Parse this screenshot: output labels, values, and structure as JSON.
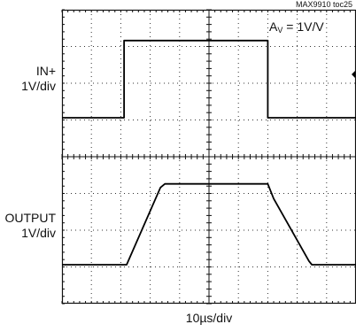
{
  "figure_id": "MAX9910 toc25",
  "gain": {
    "symbol": "A",
    "subscript": "V",
    "text": " = 1V/V"
  },
  "timebase": "10µs/div",
  "channels": [
    {
      "name_line1": "IN+",
      "name_line2": "1V/div"
    },
    {
      "name_line1": "OUTPUT",
      "name_line2": "1V/div"
    }
  ],
  "chart_data": {
    "type": "line",
    "title": "",
    "xlabel": "10µs/div",
    "x_unit": "µs",
    "xlim": [
      0,
      100
    ],
    "x_divisions": 10,
    "grid": true,
    "series": [
      {
        "name": "IN+",
        "scale": "1V/div",
        "y_divisions": 4,
        "baseline_div": 0,
        "points": [
          [
            0,
            0
          ],
          [
            21.1,
            0
          ],
          [
            21.1,
            2.1
          ],
          [
            70.0,
            2.1
          ],
          [
            70.0,
            0
          ],
          [
            100,
            0
          ]
        ]
      },
      {
        "name": "OUTPUT",
        "scale": "1V/div",
        "y_divisions": 4,
        "baseline_div": 0,
        "points": [
          [
            0,
            0
          ],
          [
            22.0,
            0
          ],
          [
            33.5,
            2.1
          ],
          [
            35.0,
            2.2
          ],
          [
            70.0,
            2.2
          ],
          [
            72.0,
            1.8
          ],
          [
            84.0,
            0.1
          ],
          [
            85.0,
            0
          ],
          [
            100,
            0
          ]
        ]
      }
    ]
  }
}
